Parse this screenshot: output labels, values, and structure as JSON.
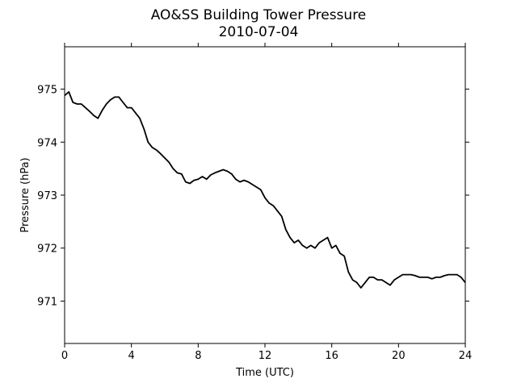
{
  "chart_data": {
    "type": "line",
    "title": "AO&SS Building Tower Pressure",
    "subtitle": "2010-07-04",
    "xlabel": "Time (UTC)",
    "ylabel": "Pressure (hPa)",
    "xlim": [
      0,
      24
    ],
    "ylim": [
      970.2,
      975.8
    ],
    "xticks": [
      0,
      4,
      8,
      12,
      16,
      20,
      24
    ],
    "yticks": [
      971,
      972,
      973,
      974,
      975
    ],
    "grid": false,
    "line_color": "#000000",
    "series": [
      {
        "x": [
          0.0,
          0.25,
          0.5,
          0.75,
          1.0,
          1.25,
          1.5,
          1.75,
          2.0,
          2.25,
          2.5,
          2.75,
          3.0,
          3.25,
          3.5,
          3.75,
          4.0,
          4.25,
          4.5,
          4.75,
          5.0,
          5.25,
          5.5,
          5.75,
          6.0,
          6.25,
          6.5,
          6.75,
          7.0,
          7.25,
          7.5,
          7.75,
          8.0,
          8.25,
          8.5,
          8.75,
          9.0,
          9.25,
          9.5,
          9.75,
          10.0,
          10.25,
          10.5,
          10.75,
          11.0,
          11.25,
          11.5,
          11.75,
          12.0,
          12.25,
          12.5,
          12.75,
          13.0,
          13.25,
          13.5,
          13.75,
          14.0,
          14.25,
          14.5,
          14.75,
          15.0,
          15.25,
          15.5,
          15.75,
          16.0,
          16.25,
          16.5,
          16.75,
          17.0,
          17.25,
          17.5,
          17.75,
          18.0,
          18.25,
          18.5,
          18.75,
          19.0,
          19.25,
          19.5,
          19.75,
          20.0,
          20.25,
          20.5,
          20.75,
          21.0,
          21.25,
          21.5,
          21.75,
          22.0,
          22.25,
          22.5,
          22.75,
          23.0,
          23.25,
          23.5,
          23.75,
          24.0
        ],
        "y": [
          974.88,
          974.95,
          974.75,
          974.72,
          974.72,
          974.65,
          974.58,
          974.5,
          974.45,
          974.6,
          974.72,
          974.8,
          974.85,
          974.85,
          974.75,
          974.65,
          974.65,
          974.55,
          974.45,
          974.25,
          974.0,
          973.9,
          973.85,
          973.78,
          973.7,
          973.62,
          973.5,
          973.42,
          973.4,
          973.25,
          973.22,
          973.28,
          973.3,
          973.35,
          973.3,
          973.38,
          973.42,
          973.45,
          973.48,
          973.45,
          973.4,
          973.3,
          973.25,
          973.28,
          973.25,
          973.2,
          973.15,
          973.1,
          972.95,
          972.85,
          972.8,
          972.7,
          972.6,
          972.35,
          972.2,
          972.1,
          972.15,
          972.05,
          972.0,
          972.05,
          972.0,
          972.1,
          972.15,
          972.2,
          972.0,
          972.05,
          971.9,
          971.85,
          971.55,
          971.4,
          971.35,
          971.25,
          971.35,
          971.45,
          971.45,
          971.4,
          971.4,
          971.35,
          971.3,
          971.4,
          971.45,
          971.5,
          971.5,
          971.5,
          971.48,
          971.45,
          971.45,
          971.45,
          971.42,
          971.45,
          971.45,
          971.48,
          971.5,
          971.5,
          971.5,
          971.45,
          971.35
        ]
      }
    ]
  }
}
